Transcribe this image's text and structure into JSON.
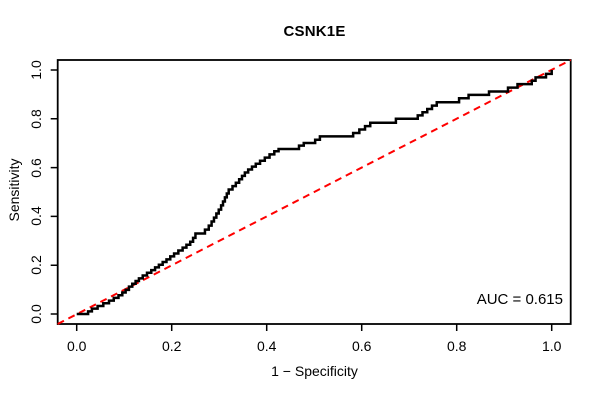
{
  "chart_data": {
    "type": "line",
    "subtype": "roc-step-curve",
    "title": "CSNK1E",
    "xlabel": "1 − Specificity",
    "ylabel": "Sensitivity",
    "xlim": [
      0,
      1
    ],
    "ylim": [
      0,
      1
    ],
    "grid": false,
    "legend": "none",
    "x_ticks": [
      "0.0",
      "0.2",
      "0.4",
      "0.6",
      "0.8",
      "1.0"
    ],
    "y_ticks": [
      "0.0",
      "0.2",
      "0.4",
      "0.6",
      "0.8",
      "1.0"
    ],
    "annotation": "AUC = 0.615",
    "auc_value": 0.615,
    "colors": {
      "roc_curve": "#000000",
      "chance_diagonal": "#FF0000",
      "frame": "#000000",
      "background": "#FFFFFF"
    },
    "series": [
      {
        "name": "ROC curve",
        "style": "step",
        "color": "#000000",
        "points": [
          [
            0.0,
            0.0
          ],
          [
            0.024,
            0.011
          ],
          [
            0.032,
            0.022
          ],
          [
            0.044,
            0.033
          ],
          [
            0.056,
            0.044
          ],
          [
            0.068,
            0.055
          ],
          [
            0.078,
            0.066
          ],
          [
            0.088,
            0.077
          ],
          [
            0.096,
            0.088
          ],
          [
            0.103,
            0.099
          ],
          [
            0.11,
            0.112
          ],
          [
            0.117,
            0.124
          ],
          [
            0.124,
            0.135
          ],
          [
            0.131,
            0.146
          ],
          [
            0.139,
            0.158
          ],
          [
            0.148,
            0.169
          ],
          [
            0.157,
            0.18
          ],
          [
            0.165,
            0.191
          ],
          [
            0.173,
            0.202
          ],
          [
            0.181,
            0.213
          ],
          [
            0.189,
            0.224
          ],
          [
            0.197,
            0.236
          ],
          [
            0.205,
            0.248
          ],
          [
            0.214,
            0.26
          ],
          [
            0.223,
            0.272
          ],
          [
            0.231,
            0.284
          ],
          [
            0.239,
            0.296
          ],
          [
            0.245,
            0.312
          ],
          [
            0.25,
            0.33
          ],
          [
            0.27,
            0.346
          ],
          [
            0.278,
            0.362
          ],
          [
            0.284,
            0.379
          ],
          [
            0.289,
            0.395
          ],
          [
            0.294,
            0.412
          ],
          [
            0.299,
            0.428
          ],
          [
            0.304,
            0.445
          ],
          [
            0.308,
            0.461
          ],
          [
            0.312,
            0.478
          ],
          [
            0.316,
            0.494
          ],
          [
            0.32,
            0.51
          ],
          [
            0.328,
            0.524
          ],
          [
            0.335,
            0.538
          ],
          [
            0.342,
            0.552
          ],
          [
            0.348,
            0.566
          ],
          [
            0.354,
            0.58
          ],
          [
            0.361,
            0.592
          ],
          [
            0.369,
            0.604
          ],
          [
            0.377,
            0.616
          ],
          [
            0.386,
            0.628
          ],
          [
            0.396,
            0.641
          ],
          [
            0.406,
            0.654
          ],
          [
            0.416,
            0.667
          ],
          [
            0.425,
            0.676
          ],
          [
            0.468,
            0.69
          ],
          [
            0.478,
            0.701
          ],
          [
            0.502,
            0.714
          ],
          [
            0.512,
            0.728
          ],
          [
            0.582,
            0.742
          ],
          [
            0.595,
            0.756
          ],
          [
            0.607,
            0.77
          ],
          [
            0.618,
            0.784
          ],
          [
            0.672,
            0.8
          ],
          [
            0.718,
            0.814
          ],
          [
            0.728,
            0.827
          ],
          [
            0.738,
            0.84
          ],
          [
            0.748,
            0.854
          ],
          [
            0.758,
            0.868
          ],
          [
            0.805,
            0.884
          ],
          [
            0.825,
            0.898
          ],
          [
            0.868,
            0.912
          ],
          [
            0.908,
            0.928
          ],
          [
            0.928,
            0.942
          ],
          [
            0.958,
            0.956
          ],
          [
            0.966,
            0.97
          ],
          [
            0.988,
            0.984
          ],
          [
            1.0,
            1.0
          ]
        ]
      },
      {
        "name": "chance diagonal",
        "style": "dashed-line",
        "color": "#FF0000",
        "points": [
          [
            0,
            0
          ],
          [
            1,
            1
          ]
        ]
      }
    ]
  }
}
